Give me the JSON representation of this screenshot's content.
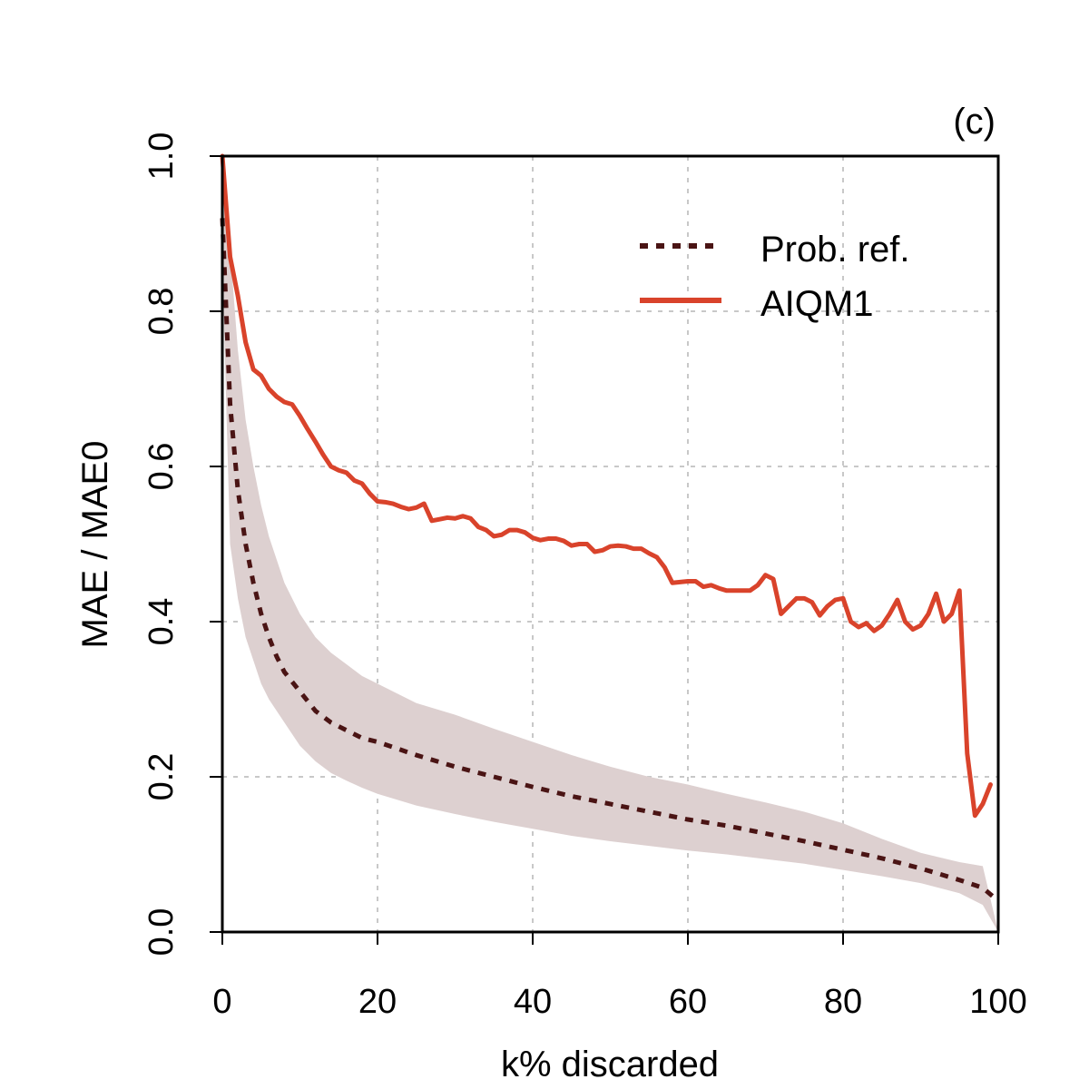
{
  "chart_data": {
    "type": "line",
    "panel_label": "(c)",
    "xlabel": "k% discarded",
    "ylabel": "MAE / MAE0",
    "xlim": [
      0,
      100
    ],
    "ylim": [
      0,
      1
    ],
    "xticks": [
      0,
      20,
      40,
      60,
      80,
      100
    ],
    "yticks": [
      0.0,
      0.2,
      0.4,
      0.6,
      0.8,
      1.0
    ],
    "xtick_labels": [
      "0",
      "20",
      "40",
      "60",
      "80",
      "100"
    ],
    "ytick_labels": [
      "0.0",
      "0.2",
      "0.4",
      "0.6",
      "0.8",
      "1.0"
    ],
    "grid": true,
    "legend_position": "top-right",
    "colors": {
      "prob_ref": "#4a1414",
      "aiqm1": "#d9432b",
      "band": "#ddd0d0",
      "grid": "#c8c8c8"
    },
    "series": [
      {
        "name": "Prob. ref.",
        "style": "dotted",
        "x": [
          0,
          1,
          2,
          3,
          4,
          5,
          6,
          7,
          8,
          10,
          12,
          14,
          16,
          18,
          20,
          25,
          30,
          35,
          40,
          45,
          50,
          55,
          60,
          65,
          70,
          75,
          80,
          85,
          90,
          95,
          98,
          100
        ],
        "values": [
          0.92,
          0.68,
          0.57,
          0.5,
          0.45,
          0.41,
          0.38,
          0.355,
          0.335,
          0.31,
          0.285,
          0.27,
          0.26,
          0.25,
          0.245,
          0.228,
          0.213,
          0.2,
          0.187,
          0.175,
          0.165,
          0.155,
          0.145,
          0.137,
          0.127,
          0.117,
          0.106,
          0.095,
          0.082,
          0.067,
          0.057,
          0.04
        ]
      },
      {
        "name": "AIQM1",
        "style": "solid",
        "x": [
          0,
          1,
          2,
          3,
          4,
          5,
          6,
          7,
          8,
          9,
          10,
          11,
          12,
          13,
          14,
          15,
          16,
          17,
          18,
          19,
          20,
          21,
          22,
          23,
          24,
          25,
          26,
          27,
          28,
          29,
          30,
          31,
          32,
          33,
          34,
          35,
          36,
          37,
          38,
          39,
          40,
          41,
          42,
          43,
          44,
          45,
          46,
          47,
          48,
          49,
          50,
          51,
          52,
          53,
          54,
          55,
          56,
          57,
          58,
          59,
          60,
          61,
          62,
          63,
          64,
          65,
          66,
          67,
          68,
          69,
          70,
          71,
          72,
          73,
          74,
          75,
          76,
          77,
          78,
          79,
          80,
          81,
          82,
          83,
          84,
          85,
          86,
          87,
          88,
          89,
          90,
          91,
          92,
          93,
          94,
          95,
          96,
          97,
          98,
          99
        ],
        "values": [
          1.0,
          0.87,
          0.82,
          0.76,
          0.725,
          0.717,
          0.7,
          0.69,
          0.683,
          0.68,
          0.665,
          0.648,
          0.632,
          0.615,
          0.6,
          0.595,
          0.592,
          0.582,
          0.578,
          0.565,
          0.555,
          0.554,
          0.552,
          0.548,
          0.545,
          0.547,
          0.552,
          0.53,
          0.532,
          0.534,
          0.533,
          0.536,
          0.533,
          0.522,
          0.518,
          0.51,
          0.512,
          0.518,
          0.518,
          0.515,
          0.508,
          0.505,
          0.507,
          0.507,
          0.504,
          0.498,
          0.5,
          0.5,
          0.49,
          0.492,
          0.497,
          0.498,
          0.497,
          0.494,
          0.494,
          0.488,
          0.483,
          0.47,
          0.45,
          0.451,
          0.452,
          0.452,
          0.445,
          0.447,
          0.443,
          0.44,
          0.44,
          0.44,
          0.44,
          0.447,
          0.46,
          0.455,
          0.41,
          0.42,
          0.43,
          0.43,
          0.425,
          0.408,
          0.42,
          0.428,
          0.43,
          0.4,
          0.393,
          0.398,
          0.388,
          0.395,
          0.41,
          0.428,
          0.4,
          0.39,
          0.395,
          0.41,
          0.436,
          0.4,
          0.41,
          0.44,
          0.23,
          0.15,
          0.165,
          0.19
        ]
      }
    ],
    "band": {
      "name": "Prob. ref. spread",
      "x": [
        0,
        1,
        2,
        3,
        4,
        5,
        6,
        8,
        10,
        12,
        14,
        16,
        18,
        20,
        25,
        30,
        35,
        40,
        45,
        50,
        55,
        60,
        65,
        70,
        75,
        80,
        85,
        90,
        95,
        98,
        100
      ],
      "upper": [
        0.96,
        0.88,
        0.75,
        0.66,
        0.6,
        0.55,
        0.51,
        0.45,
        0.41,
        0.38,
        0.36,
        0.345,
        0.33,
        0.32,
        0.295,
        0.28,
        0.262,
        0.245,
        0.228,
        0.213,
        0.2,
        0.19,
        0.178,
        0.167,
        0.155,
        0.14,
        0.12,
        0.102,
        0.09,
        0.085,
        0.0
      ],
      "lower": [
        0.86,
        0.5,
        0.43,
        0.38,
        0.35,
        0.32,
        0.3,
        0.27,
        0.24,
        0.22,
        0.205,
        0.195,
        0.186,
        0.178,
        0.163,
        0.152,
        0.142,
        0.133,
        0.124,
        0.117,
        0.111,
        0.105,
        0.1,
        0.094,
        0.088,
        0.08,
        0.072,
        0.063,
        0.05,
        0.035,
        0.0
      ]
    }
  }
}
